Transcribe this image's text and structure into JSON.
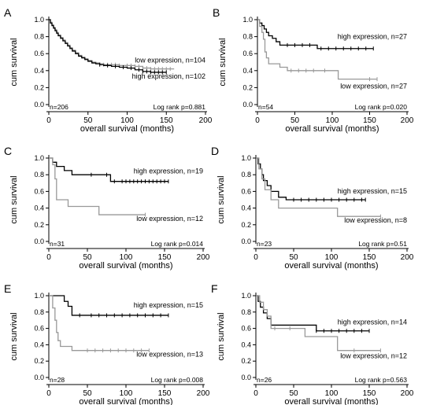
{
  "chart_data": [
    {
      "type": "line",
      "panel_label": "A",
      "xlabel": "overall survival (months)",
      "ylabel": "cum survival",
      "xlim": [
        0,
        200
      ],
      "ylim": [
        0,
        1
      ],
      "xticks": [
        0,
        50,
        100,
        150,
        200
      ],
      "yticks": [
        0.0,
        0.2,
        0.4,
        0.6,
        0.8,
        1.0
      ],
      "n_text": "n=206",
      "logrank_text": "Log rank p=0.881",
      "series": [
        {
          "name": "low expression, n=104",
          "color": "#999999",
          "x": [
            0,
            2,
            4,
            6,
            8,
            10,
            12,
            15,
            18,
            21,
            24,
            27,
            30,
            34,
            38,
            42,
            46,
            50,
            55,
            60,
            65,
            70,
            80,
            90,
            100,
            110,
            120,
            130,
            140,
            150,
            160
          ],
          "y": [
            1.0,
            0.97,
            0.94,
            0.91,
            0.88,
            0.85,
            0.82,
            0.79,
            0.76,
            0.73,
            0.7,
            0.67,
            0.64,
            0.61,
            0.58,
            0.56,
            0.54,
            0.52,
            0.5,
            0.49,
            0.48,
            0.47,
            0.47,
            0.46,
            0.46,
            0.45,
            0.43,
            0.42,
            0.42,
            0.42,
            0.42
          ],
          "censor_x": [
            70,
            75,
            80,
            85,
            90,
            100,
            105,
            110,
            115,
            120,
            125,
            130,
            135,
            140,
            145,
            150,
            155
          ]
        },
        {
          "name": "high expression, n=102",
          "color": "#000000",
          "x": [
            0,
            2,
            4,
            6,
            8,
            10,
            12,
            15,
            18,
            21,
            24,
            27,
            30,
            34,
            38,
            42,
            46,
            50,
            55,
            60,
            65,
            70,
            80,
            90,
            100,
            110,
            120,
            130,
            140,
            150
          ],
          "y": [
            1.0,
            0.96,
            0.93,
            0.9,
            0.87,
            0.84,
            0.81,
            0.78,
            0.75,
            0.72,
            0.69,
            0.66,
            0.63,
            0.6,
            0.57,
            0.55,
            0.53,
            0.51,
            0.49,
            0.48,
            0.47,
            0.46,
            0.45,
            0.44,
            0.43,
            0.41,
            0.39,
            0.38,
            0.38,
            0.38
          ],
          "censor_x": [
            65,
            75,
            85,
            95,
            105,
            115,
            120,
            125,
            130,
            135,
            140,
            145,
            150
          ]
        }
      ]
    },
    {
      "type": "line",
      "panel_label": "B",
      "xlabel": "overall survival (months)",
      "ylabel": "cum survival",
      "xlim": [
        0,
        200
      ],
      "ylim": [
        0,
        1
      ],
      "xticks": [
        0,
        50,
        100,
        150,
        200
      ],
      "yticks": [
        0.0,
        0.2,
        0.4,
        0.6,
        0.8,
        1.0
      ],
      "n_text": "n=54",
      "logrank_text": "Log rank p=0.020",
      "series": [
        {
          "name": "high expression, n=27",
          "color": "#000000",
          "x": [
            0,
            3,
            6,
            9,
            12,
            15,
            20,
            25,
            30,
            40,
            50,
            60,
            80,
            100,
            120,
            140,
            155
          ],
          "y": [
            1.0,
            0.96,
            0.93,
            0.89,
            0.85,
            0.81,
            0.78,
            0.74,
            0.7,
            0.7,
            0.7,
            0.7,
            0.66,
            0.66,
            0.66,
            0.66,
            0.66
          ],
          "censor_x": [
            40,
            50,
            60,
            70,
            85,
            95,
            105,
            115,
            125,
            135,
            145,
            155
          ]
        },
        {
          "name": "low expression, n=27",
          "color": "#999999",
          "x": [
            0,
            3,
            6,
            8,
            10,
            12,
            15,
            20,
            30,
            40,
            50,
            60,
            70,
            80,
            100,
            108,
            120,
            140,
            160
          ],
          "y": [
            1.0,
            0.92,
            0.85,
            0.77,
            0.62,
            0.55,
            0.48,
            0.48,
            0.44,
            0.4,
            0.4,
            0.4,
            0.4,
            0.4,
            0.4,
            0.3,
            0.3,
            0.3,
            0.3
          ],
          "censor_x": [
            45,
            55,
            65,
            75,
            90,
            150,
            160
          ]
        }
      ]
    },
    {
      "type": "line",
      "panel_label": "C",
      "xlabel": "overall survival (months)",
      "ylabel": "cum survival",
      "xlim": [
        0,
        200
      ],
      "ylim": [
        0,
        1
      ],
      "xticks": [
        0,
        50,
        100,
        150,
        200
      ],
      "yticks": [
        0.0,
        0.2,
        0.4,
        0.6,
        0.8,
        1.0
      ],
      "n_text": "n=31",
      "logrank_text": "Log rank p=0.014",
      "series": [
        {
          "name": "high expression, n=19",
          "color": "#000000",
          "x": [
            0,
            5,
            10,
            20,
            30,
            50,
            75,
            80,
            100,
            120,
            140,
            155
          ],
          "y": [
            1.0,
            0.95,
            0.9,
            0.85,
            0.8,
            0.8,
            0.8,
            0.72,
            0.72,
            0.72,
            0.72,
            0.72
          ],
          "censor_x": [
            55,
            75,
            85,
            95,
            100,
            105,
            110,
            115,
            120,
            125,
            130,
            135,
            140,
            145,
            150,
            155
          ]
        },
        {
          "name": "low expression, n=12",
          "color": "#999999",
          "x": [
            0,
            5,
            8,
            10,
            20,
            25,
            50,
            60,
            65,
            100,
            125
          ],
          "y": [
            1.0,
            0.92,
            0.75,
            0.5,
            0.5,
            0.42,
            0.42,
            0.42,
            0.32,
            0.32,
            0.32
          ],
          "censor_x": [
            125
          ]
        }
      ]
    },
    {
      "type": "line",
      "panel_label": "D",
      "xlabel": "overall survival (months)",
      "ylabel": "cum survival",
      "xlim": [
        0,
        200
      ],
      "ylim": [
        0,
        1
      ],
      "xticks": [
        0,
        50,
        100,
        150,
        200
      ],
      "yticks": [
        0.0,
        0.2,
        0.4,
        0.6,
        0.8,
        1.0
      ],
      "n_text": "n=23",
      "logrank_text": "Log rank p=0.51",
      "series": [
        {
          "name": "high expression, n=15",
          "color": "#000000",
          "x": [
            0,
            3,
            6,
            8,
            10,
            15,
            20,
            30,
            40,
            50,
            100,
            145
          ],
          "y": [
            1.0,
            0.93,
            0.87,
            0.8,
            0.73,
            0.67,
            0.6,
            0.53,
            0.5,
            0.5,
            0.5,
            0.5
          ],
          "censor_x": [
            50,
            60,
            70,
            80,
            90,
            100,
            110,
            120,
            130,
            140,
            145
          ]
        },
        {
          "name": "low expression, n=8",
          "color": "#999999",
          "x": [
            0,
            4,
            8,
            12,
            20,
            30,
            40,
            60,
            100,
            108,
            140,
            165
          ],
          "y": [
            1.0,
            0.87,
            0.75,
            0.62,
            0.5,
            0.4,
            0.4,
            0.4,
            0.4,
            0.3,
            0.3,
            0.3
          ],
          "censor_x": [
            165
          ]
        }
      ]
    },
    {
      "type": "line",
      "panel_label": "E",
      "xlabel": "overall survival (months)",
      "ylabel": "cum survival",
      "xlim": [
        0,
        200
      ],
      "ylim": [
        0,
        1
      ],
      "xticks": [
        0,
        50,
        100,
        150,
        200
      ],
      "yticks": [
        0.0,
        0.2,
        0.4,
        0.6,
        0.8,
        1.0
      ],
      "n_text": "n=28",
      "logrank_text": "Log rank p=0.008",
      "series": [
        {
          "name": "high expression, n=15",
          "color": "#000000",
          "x": [
            0,
            10,
            20,
            25,
            30,
            50,
            100,
            155
          ],
          "y": [
            1.0,
            1.0,
            0.93,
            0.87,
            0.76,
            0.76,
            0.76,
            0.76
          ],
          "censor_x": [
            40,
            55,
            65,
            75,
            85,
            95,
            105,
            115,
            125,
            135,
            145,
            155
          ]
        },
        {
          "name": "low expression, n=13",
          "color": "#999999",
          "x": [
            0,
            5,
            8,
            10,
            12,
            15,
            20,
            30,
            50,
            100,
            130
          ],
          "y": [
            1.0,
            0.85,
            0.7,
            0.55,
            0.45,
            0.38,
            0.38,
            0.33,
            0.33,
            0.33,
            0.33
          ],
          "censor_x": [
            50,
            60,
            70,
            80,
            90,
            100,
            110,
            120,
            130
          ]
        }
      ]
    },
    {
      "type": "line",
      "panel_label": "F",
      "xlabel": "overall survival (months)",
      "ylabel": "cum survival",
      "xlim": [
        0,
        200
      ],
      "ylim": [
        0,
        1
      ],
      "xticks": [
        0,
        50,
        100,
        150,
        200
      ],
      "yticks": [
        0.0,
        0.2,
        0.4,
        0.6,
        0.8,
        1.0
      ],
      "n_text": "n=26",
      "logrank_text": "Log rank p=0.563",
      "series": [
        {
          "name": "high expression, n=14",
          "color": "#000000",
          "x": [
            0,
            3,
            6,
            10,
            15,
            20,
            30,
            40,
            80,
            100,
            120,
            150
          ],
          "y": [
            1.0,
            0.93,
            0.86,
            0.79,
            0.72,
            0.64,
            0.64,
            0.64,
            0.57,
            0.57,
            0.57,
            0.57
          ],
          "censor_x": [
            80,
            90,
            100,
            110,
            120,
            130,
            140,
            150
          ]
        },
        {
          "name": "low expression, n=12",
          "color": "#999999",
          "x": [
            0,
            5,
            10,
            15,
            20,
            40,
            60,
            65,
            100,
            108,
            120,
            165
          ],
          "y": [
            1.0,
            0.92,
            0.83,
            0.75,
            0.6,
            0.6,
            0.6,
            0.5,
            0.5,
            0.33,
            0.33,
            0.33
          ],
          "censor_x": [
            25,
            45,
            130,
            165
          ]
        }
      ]
    }
  ]
}
